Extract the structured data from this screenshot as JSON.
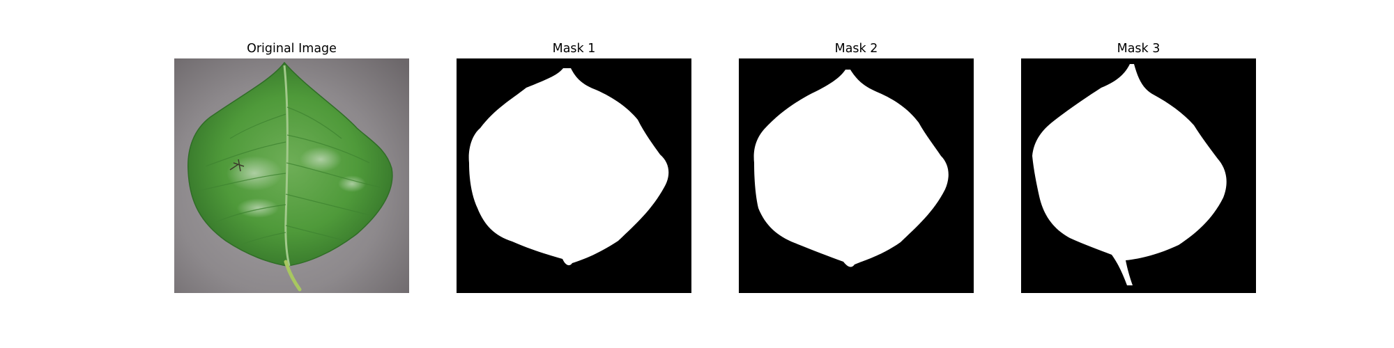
{
  "figure": {
    "panels": [
      {
        "title": "Original Image",
        "kind": "photo",
        "subject": "leaf-photo"
      },
      {
        "title": "Mask 1",
        "kind": "mask"
      },
      {
        "title": "Mask 2",
        "kind": "mask"
      },
      {
        "title": "Mask 3",
        "kind": "mask"
      }
    ],
    "colors": {
      "background": "#ffffff",
      "mask_background": "#000000",
      "mask_foreground": "#ffffff",
      "leaf_green": "#4f9a3a",
      "surface_gray": "#8e8a8c"
    }
  }
}
